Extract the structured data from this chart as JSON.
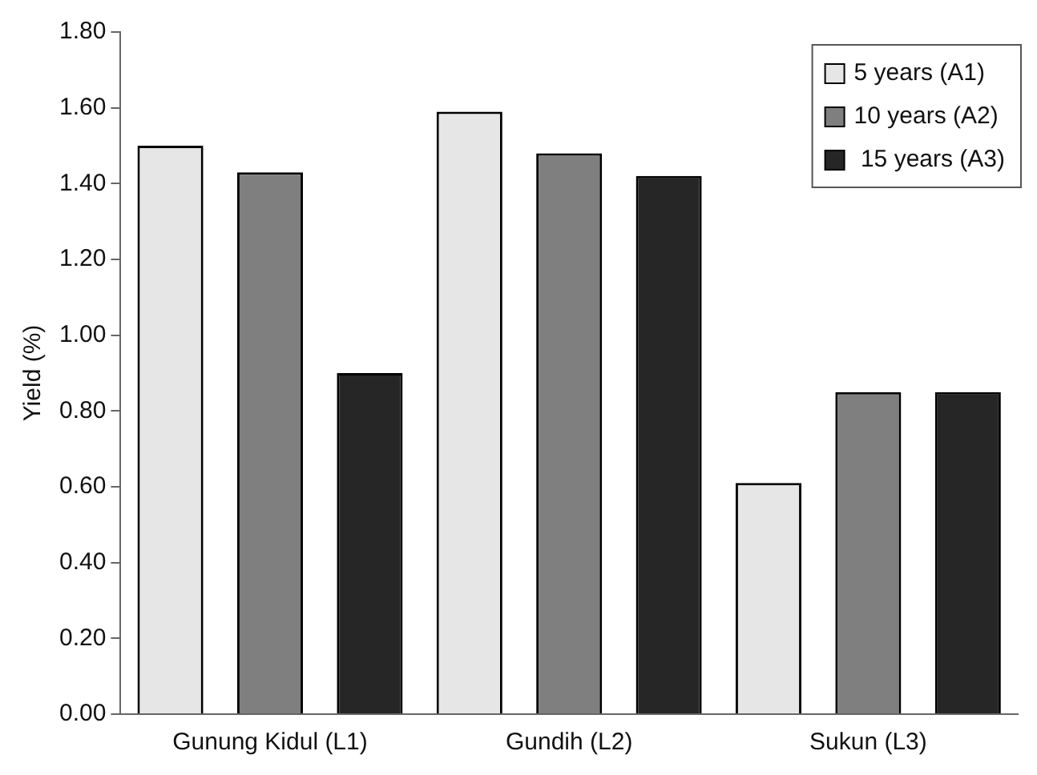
{
  "chart_data": {
    "type": "bar",
    "ylabel": "Yield (%)",
    "categories": [
      "Gunung Kidul (L1)",
      "Gundih (L2)",
      "Sukun (L3)"
    ],
    "series": [
      {
        "name": "5 years (A1)",
        "color": "#e6e6e6",
        "values": [
          1.5,
          1.59,
          0.61
        ]
      },
      {
        "name": "10 years (A2)",
        "color": "#7f7f7f",
        "values": [
          1.43,
          1.48,
          0.85
        ]
      },
      {
        "name": " 15 years (A3)",
        "color": "#262626",
        "values": [
          0.9,
          1.42,
          0.85
        ]
      }
    ],
    "ylim": [
      0,
      1.8
    ],
    "yticks": [
      {
        "value": 0,
        "label": "0.00"
      },
      {
        "value": 0.2,
        "label": "0.20"
      },
      {
        "value": 0.4,
        "label": "0.40"
      },
      {
        "value": 0.6,
        "label": "0.60"
      },
      {
        "value": 0.8,
        "label": "0.80"
      },
      {
        "value": 1.0,
        "label": "1.00"
      },
      {
        "value": 1.2,
        "label": "1.20"
      },
      {
        "value": 1.4,
        "label": "1.40"
      },
      {
        "value": 1.6,
        "label": "1.60"
      },
      {
        "value": 1.8,
        "label": "1.80"
      }
    ],
    "grid": false,
    "legend": "top right"
  }
}
